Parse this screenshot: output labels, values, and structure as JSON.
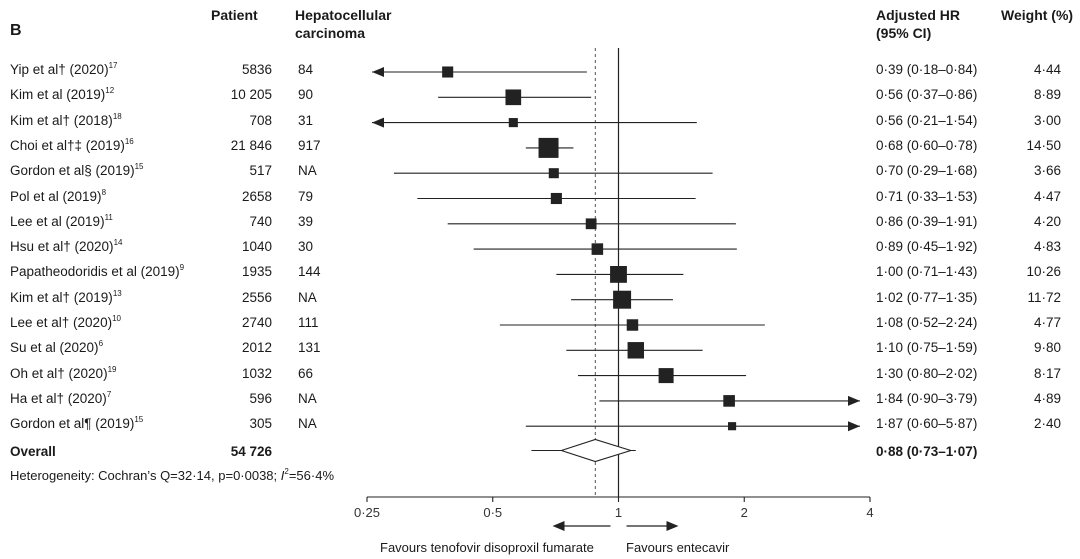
{
  "panel_label": "B",
  "headers": {
    "patient": "Patient",
    "hcc_line1": "Hepatocellular",
    "hcc_line2": "carcinoma",
    "hr_line1": "Adjusted HR",
    "hr_line2": "(95% CI)",
    "weight": "Weight (%)"
  },
  "studies": [
    {
      "name": "Yip et al† (2020)",
      "ref": "17",
      "patients": "5836",
      "hcc": "84",
      "hr_text": "0·39 (0·18–0·84)",
      "weight": "4·44"
    },
    {
      "name": "Kim et al (2019)",
      "ref": "12",
      "patients": "10 205",
      "hcc": "90",
      "hr_text": "0·56 (0·37–0·86)",
      "weight": "8·89"
    },
    {
      "name": "Kim  et al† (2018)",
      "ref": "18",
      "patients": "708",
      "hcc": "31",
      "hr_text": "0·56 (0·21–1·54)",
      "weight": "3·00"
    },
    {
      "name": "Choi et al†‡ (2019)",
      "ref": "16",
      "patients": "21 846",
      "hcc": "917",
      "hr_text": "0·68 (0·60–0·78)",
      "weight": "14·50"
    },
    {
      "name": "Gordon et al§ (2019)",
      "ref": "15",
      "patients": "517",
      "hcc": "NA",
      "hr_text": "0·70 (0·29–1·68)",
      "weight": "3·66"
    },
    {
      "name": "Pol et al (2019)",
      "ref": "8",
      "patients": "2658",
      "hcc": "79",
      "hr_text": "0·71 (0·33–1·53)",
      "weight": "4·47"
    },
    {
      "name": "Lee et al (2019)",
      "ref": "11",
      "patients": "740",
      "hcc": "39",
      "hr_text": "0·86 (0·39–1·91)",
      "weight": "4·20"
    },
    {
      "name": "Hsu et al† (2020)",
      "ref": "14",
      "patients": "1040",
      "hcc": "30",
      "hr_text": "0·89 (0·45–1·92)",
      "weight": "4·83"
    },
    {
      "name": "Papatheodoridis et al (2019)",
      "ref": "9",
      "patients": "1935",
      "hcc": "144",
      "hr_text": "1·00 (0·71–1·43)",
      "weight": "10·26"
    },
    {
      "name": "Kim et al† (2019)",
      "ref": "13",
      "patients": "2556",
      "hcc": "NA",
      "hr_text": "1·02 (0·77–1·35)",
      "weight": "11·72"
    },
    {
      "name": "Lee et al† (2020)",
      "ref": "10",
      "patients": "2740",
      "hcc": "111",
      "hr_text": "1·08 (0·52–2·24)",
      "weight": "4·77"
    },
    {
      "name": "Su et al (2020)",
      "ref": "6",
      "patients": "2012",
      "hcc": "131",
      "hr_text": "1·10 (0·75–1·59)",
      "weight": "9·80"
    },
    {
      "name": "Oh et al† (2020)",
      "ref": "19",
      "patients": "1032",
      "hcc": "66",
      "hr_text": "1·30 (0·80–2·02)",
      "weight": "8·17"
    },
    {
      "name": "Ha et al† (2020)",
      "ref": "7",
      "patients": "596",
      "hcc": "NA",
      "hr_text": "1·84 (0·90–3·79)",
      "weight": "4·89"
    },
    {
      "name": "Gordon et al¶ (2019)",
      "ref": "15",
      "patients": "305",
      "hcc": "NA",
      "hr_text": "1·87 (0·60–5·87)",
      "weight": "2·40"
    }
  ],
  "overall": {
    "label": "Overall",
    "patients": "54 726",
    "hr_text": "0·88 (0·73–1·07)"
  },
  "heterogeneity": {
    "prefix": "Heterogeneity: Cochran’s Q=32·14, p=0·0038; ",
    "i_sym": "I",
    "sup": "2",
    "suffix": "=56·4%"
  },
  "favours": {
    "left": "Favours tenofovir disoproxil fumarate",
    "right": "Favours entecavir"
  },
  "chart_data": {
    "type": "forest",
    "scale": "log2",
    "xlim": [
      0.25,
      4
    ],
    "ticks": [
      0.25,
      0.5,
      1,
      2,
      4
    ],
    "tick_labels": [
      "0·25",
      "0·5",
      "1",
      "2",
      "4"
    ],
    "reference_line": 1,
    "overall_line": 0.88,
    "series": [
      {
        "name": "Yip et al† (2020)",
        "hr": 0.39,
        "lo": 0.18,
        "hi": 0.84,
        "weight": 4.44
      },
      {
        "name": "Kim et al (2019)",
        "hr": 0.56,
        "lo": 0.37,
        "hi": 0.86,
        "weight": 8.89
      },
      {
        "name": "Kim et al† (2018)",
        "hr": 0.56,
        "lo": 0.21,
        "hi": 1.54,
        "weight": 3.0
      },
      {
        "name": "Choi et al†‡ (2019)",
        "hr": 0.68,
        "lo": 0.6,
        "hi": 0.78,
        "weight": 14.5
      },
      {
        "name": "Gordon et al§ (2019)",
        "hr": 0.7,
        "lo": 0.29,
        "hi": 1.68,
        "weight": 3.66
      },
      {
        "name": "Pol et al (2019)",
        "hr": 0.71,
        "lo": 0.33,
        "hi": 1.53,
        "weight": 4.47
      },
      {
        "name": "Lee et al (2019)",
        "hr": 0.86,
        "lo": 0.39,
        "hi": 1.91,
        "weight": 4.2
      },
      {
        "name": "Hsu et al† (2020)",
        "hr": 0.89,
        "lo": 0.45,
        "hi": 1.92,
        "weight": 4.83
      },
      {
        "name": "Papatheodoridis et al (2019)",
        "hr": 1.0,
        "lo": 0.71,
        "hi": 1.43,
        "weight": 10.26
      },
      {
        "name": "Kim et al† (2019)",
        "hr": 1.02,
        "lo": 0.77,
        "hi": 1.35,
        "weight": 11.72
      },
      {
        "name": "Lee et al† (2020)",
        "hr": 1.08,
        "lo": 0.52,
        "hi": 2.24,
        "weight": 4.77
      },
      {
        "name": "Su et al (2020)",
        "hr": 1.1,
        "lo": 0.75,
        "hi": 1.59,
        "weight": 9.8
      },
      {
        "name": "Oh et al† (2020)",
        "hr": 1.3,
        "lo": 0.8,
        "hi": 2.02,
        "weight": 8.17
      },
      {
        "name": "Ha et al† (2020)",
        "hr": 1.84,
        "lo": 0.9,
        "hi": 3.79,
        "weight": 4.89
      },
      {
        "name": "Gordon et al¶ (2019)",
        "hr": 1.87,
        "lo": 0.6,
        "hi": 5.87,
        "weight": 2.4
      }
    ],
    "overall": {
      "hr": 0.88,
      "lo": 0.73,
      "hi": 1.07
    }
  }
}
